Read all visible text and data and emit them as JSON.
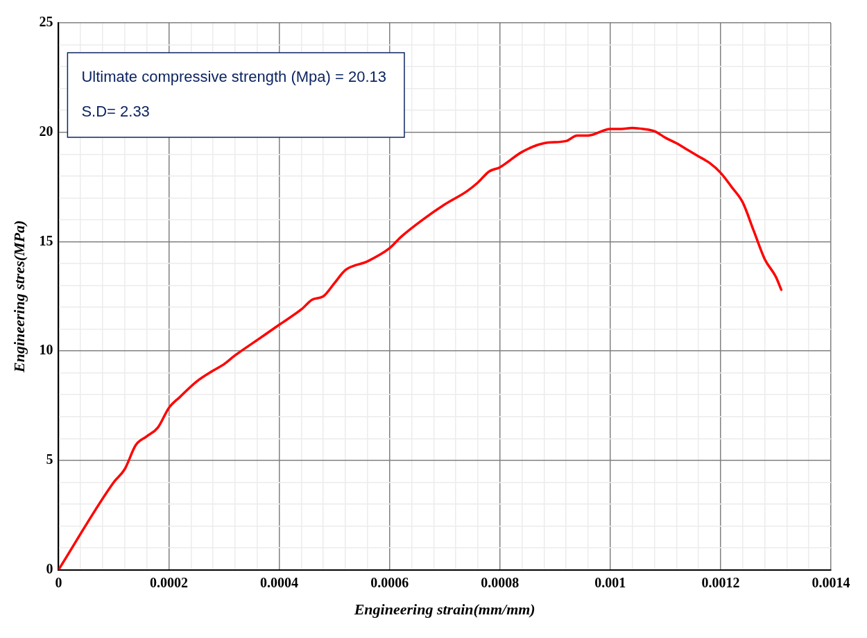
{
  "chart_data": {
    "type": "line",
    "xlabel": "Engineering strain(mm/mm)",
    "ylabel": "Engineering stres(MPa)",
    "annotations": [
      "Ultimate compressive strength (Mpa) = 20.13",
      "S.D= 2.33"
    ],
    "series": [
      {
        "color": "#ff0000",
        "x": [
          0,
          0.0001,
          0.00012,
          0.00014,
          0.00016,
          0.00018,
          0.0002,
          0.00022,
          0.00025,
          0.00028,
          0.0003,
          0.00032,
          0.00036,
          0.0004,
          0.00044,
          0.00046,
          0.00048,
          0.0005,
          0.00052,
          0.00056,
          0.0006,
          0.00062,
          0.00066,
          0.0007,
          0.00074,
          0.00076,
          0.00078,
          0.0008,
          0.00084,
          0.00088,
          0.00092,
          0.00094,
          0.00096,
          0.001,
          0.00102,
          0.00104,
          0.00106,
          0.00108,
          0.0011,
          0.00112,
          0.00114,
          0.00116,
          0.00118,
          0.0012,
          0.00122,
          0.00124,
          0.00126,
          0.00128,
          0.0013,
          0.00131
        ],
        "values": [
          0,
          4.0,
          4.6,
          5.7,
          6.1,
          6.5,
          7.4,
          7.9,
          8.6,
          9.1,
          9.4,
          9.8,
          10.5,
          11.2,
          11.9,
          12.35,
          12.5,
          13.1,
          13.7,
          14.1,
          14.7,
          15.2,
          16.0,
          16.7,
          17.3,
          17.7,
          18.2,
          18.4,
          19.1,
          19.5,
          19.6,
          19.85,
          19.85,
          20.15,
          20.15,
          20.2,
          20.15,
          20.05,
          19.75,
          19.5,
          19.2,
          18.9,
          18.6,
          18.15,
          17.5,
          16.8,
          15.5,
          14.2,
          13.4,
          12.8
        ]
      }
    ],
    "xlim": [
      0,
      0.0014
    ],
    "xticks": [
      0,
      {
        "value": 4e-05,
        "label": null
      },
      {
        "value": 8e-05,
        "label": null
      },
      {
        "value": 0.00012,
        "label": null
      },
      {
        "value": 0.00016,
        "label": null
      },
      0.0002,
      {
        "value": 0.00024,
        "label": null
      },
      {
        "value": 0.00028,
        "label": null
      },
      {
        "value": 0.00032,
        "label": null
      },
      {
        "value": 0.00036,
        "label": null
      },
      0.0004,
      {
        "value": 0.00044,
        "label": null
      },
      {
        "value": 0.00048,
        "label": null
      },
      {
        "value": 0.00052,
        "label": null
      },
      {
        "value": 0.00056,
        "label": null
      },
      0.0006,
      {
        "value": 0.00064,
        "label": null
      },
      {
        "value": 0.00068,
        "label": null
      },
      {
        "value": 0.00072,
        "label": null
      },
      {
        "value": 0.00076,
        "label": null
      },
      0.0008,
      {
        "value": 0.00084,
        "label": null
      },
      {
        "value": 0.00088,
        "label": null
      },
      {
        "value": 0.00092,
        "label": null
      },
      {
        "value": 0.00096,
        "label": null
      },
      0.001,
      {
        "value": 0.00104,
        "label": null
      },
      {
        "value": 0.00108,
        "label": null
      },
      {
        "value": 0.00112,
        "label": null
      },
      {
        "value": 0.00116,
        "label": null
      },
      0.0012,
      {
        "value": 0.00124,
        "label": null
      },
      {
        "value": 0.00128,
        "label": null
      },
      {
        "value": 0.00132,
        "label": null
      },
      {
        "value": 0.00136,
        "label": null
      },
      0.0014
    ],
    "ylim": [
      0,
      25
    ],
    "yticks": [
      0,
      {
        "value": 1,
        "label": null
      },
      {
        "value": 2,
        "label": null
      },
      {
        "value": 3,
        "label": null
      },
      {
        "value": 4,
        "label": null
      },
      5,
      {
        "value": 6,
        "label": null
      },
      {
        "value": 7,
        "label": null
      },
      {
        "value": 8,
        "label": null
      },
      {
        "value": 9,
        "label": null
      },
      10,
      {
        "value": 11,
        "label": null
      },
      {
        "value": 12,
        "label": null
      },
      {
        "value": 13,
        "label": null
      },
      {
        "value": 14,
        "label": null
      },
      15,
      {
        "value": 16,
        "label": null
      },
      {
        "value": 17,
        "label": null
      },
      {
        "value": 18,
        "label": null
      },
      {
        "value": 19,
        "label": null
      },
      20,
      {
        "value": 21,
        "label": null
      },
      {
        "value": 22,
        "label": null
      },
      {
        "value": 23,
        "label": null
      },
      {
        "value": 24,
        "label": null
      },
      25
    ],
    "grid": true,
    "legend": false,
    "marker": "none",
    "line_style": "solid"
  }
}
